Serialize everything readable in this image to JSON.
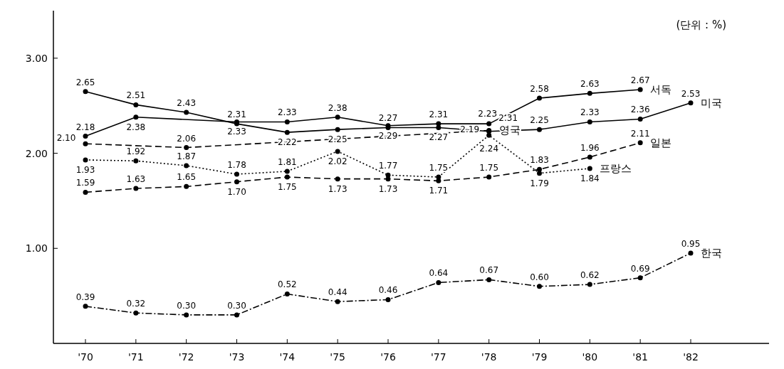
{
  "chart_data": {
    "type": "line",
    "categories": [
      "'70",
      "'71",
      "'72",
      "'73",
      "'74",
      "'75",
      "'76",
      "'77",
      "'78",
      "'79",
      "'80",
      "'81",
      "'82"
    ],
    "ylim": [
      0,
      3.5
    ],
    "yticks": [
      {
        "value": 1,
        "label": "1.00"
      },
      {
        "value": 2,
        "label": "2.00"
      },
      {
        "value": 3,
        "label": "3.00"
      }
    ],
    "marker": "circle",
    "annotations": [
      "(단위 : %)"
    ],
    "series": [
      {
        "name": "미국",
        "color": "#000000",
        "line_style": "solid",
        "values": [
          2.65,
          2.51,
          2.43,
          2.31,
          2.22,
          2.25,
          2.27,
          2.27,
          2.23,
          2.25,
          2.33,
          2.36,
          2.53
        ],
        "value_labels": [
          "2.65",
          "2.51",
          "2.43",
          "2.31",
          "2.22",
          "2.25",
          "2.27",
          "2.27",
          "2.23",
          "2.25",
          "2.33",
          "2.36",
          "2.53"
        ]
      },
      {
        "name": "서독",
        "color": "#000000",
        "line_style": "solid",
        "x": [
          "'70",
          "'71",
          "'73",
          "'74",
          "'75",
          "'76",
          "'77",
          "'78",
          "'79",
          "'80",
          "'81"
        ],
        "values": [
          2.18,
          2.38,
          2.33,
          2.33,
          2.38,
          2.29,
          2.31,
          2.31,
          2.58,
          2.63,
          2.67
        ],
        "value_labels": [
          "2.18",
          "2.38",
          "2.33",
          "2.33",
          "2.38",
          "2.29",
          "2.31",
          "2.31",
          "2.58",
          "2.63",
          "2.67"
        ]
      },
      {
        "name": "영국",
        "color": "#000000",
        "line_style": "dashed",
        "x": [
          "'70",
          "'72",
          "'78"
        ],
        "values": [
          2.1,
          2.06,
          2.24
        ],
        "value_labels": [
          "2.10",
          "2.06",
          "2.24"
        ]
      },
      {
        "name": "프랑스",
        "color": "#000000",
        "line_style": "dotted",
        "x": [
          "'70",
          "'71",
          "'72",
          "'73",
          "'74",
          "'75",
          "'76",
          "'77",
          "'78",
          "'79",
          "'80"
        ],
        "values": [
          1.93,
          1.92,
          1.87,
          1.78,
          1.81,
          2.02,
          1.77,
          1.75,
          2.19,
          1.79,
          1.84
        ],
        "value_labels": [
          "1.93",
          "1.92",
          "1.87",
          "1.78",
          "1.81",
          "2.02",
          "1.77",
          "1.75",
          "2.19",
          "1.79",
          "1.84"
        ]
      },
      {
        "name": "일본",
        "color": "#000000",
        "line_style": "dashed",
        "x": [
          "'70",
          "'71",
          "'72",
          "'73",
          "'74",
          "'75",
          "'76",
          "'77",
          "'78",
          "'79",
          "'80",
          "'81"
        ],
        "values": [
          1.59,
          1.63,
          1.65,
          1.7,
          1.75,
          1.73,
          1.73,
          1.71,
          1.75,
          1.83,
          1.96,
          2.11
        ],
        "value_labels": [
          "1.59",
          "1.63",
          "1.65",
          "1.70",
          "1.75",
          "1.73",
          "1.73",
          "1.71",
          "1.75",
          "1.83",
          "1.96",
          "2.11"
        ]
      },
      {
        "name": "한국",
        "color": "#000000",
        "line_style": "dashdot",
        "values": [
          0.39,
          0.32,
          0.3,
          0.3,
          0.52,
          0.44,
          0.46,
          0.64,
          0.67,
          0.6,
          0.62,
          0.69,
          0.95
        ],
        "value_labels": [
          "0.39",
          "0.32",
          "0.30",
          "0.30",
          "0.52",
          "0.44",
          "0.46",
          "0.64",
          "0.67",
          "0.60",
          "0.62",
          "0.69",
          "0.95"
        ]
      }
    ]
  }
}
